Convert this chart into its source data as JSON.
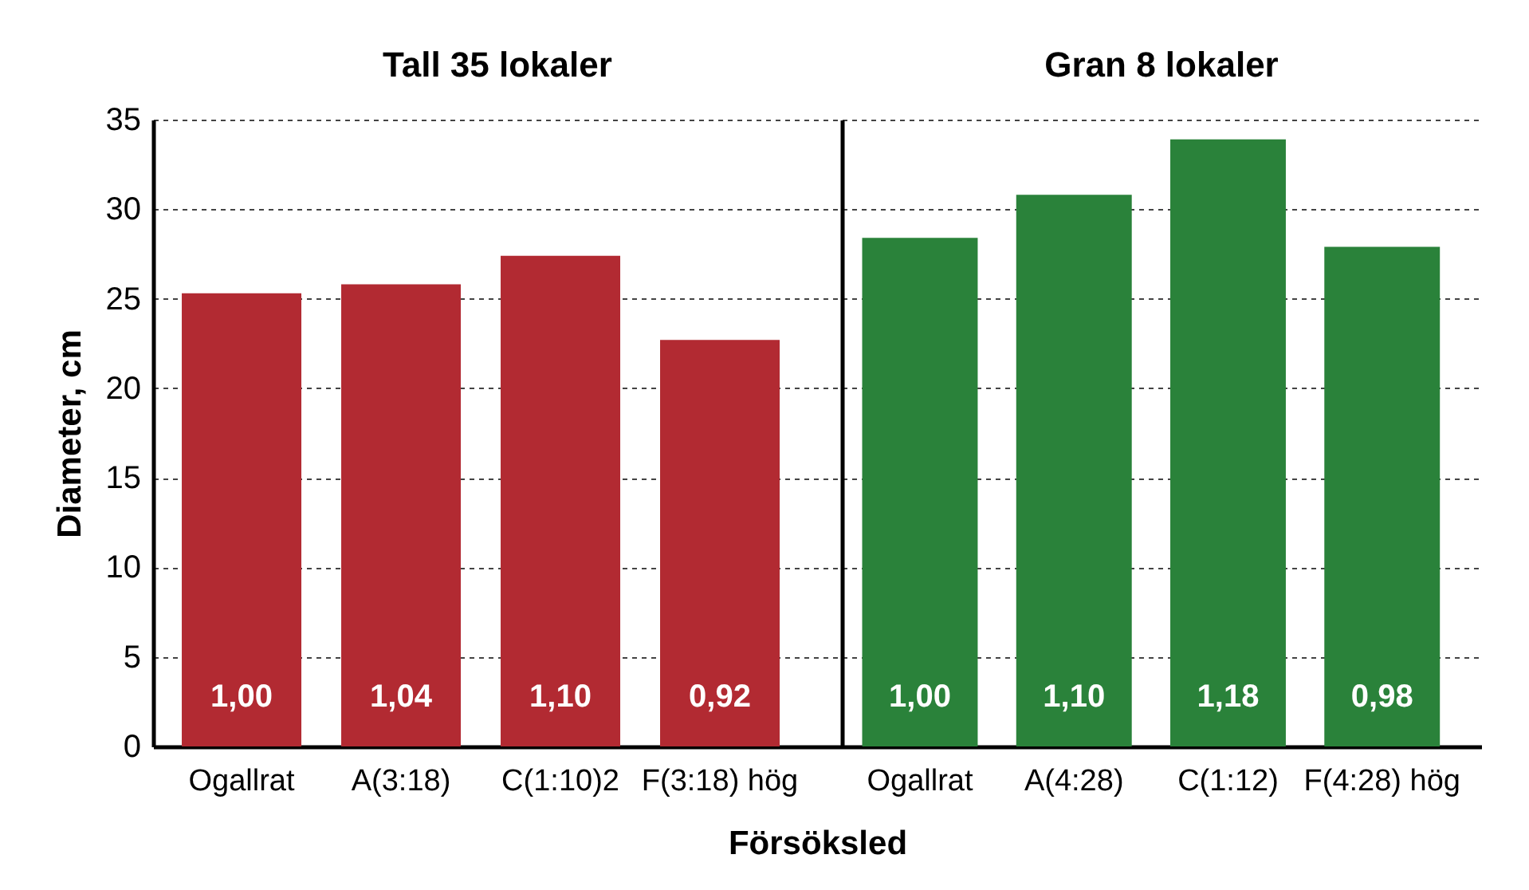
{
  "chart_data": [
    {
      "type": "bar",
      "title": "Tall 35 lokaler",
      "xlabel": "Försöksled",
      "ylabel": "Diameter, cm",
      "categories": [
        "Ogallrat",
        "A(3:18)",
        "C(1:10)2",
        "F(3:18) hög"
      ],
      "values": [
        25.3,
        25.8,
        27.4,
        22.7
      ],
      "color": "#b22a32",
      "annotations": [
        "1,00",
        "1,04",
        "1,10",
        "0,92"
      ],
      "ylim": [
        0,
        35
      ],
      "yticks": [
        0,
        5,
        10,
        15,
        20,
        25,
        30,
        35
      ],
      "grid": "y"
    },
    {
      "type": "bar",
      "title": "Gran 8 lokaler",
      "categories": [
        "Ogallrat",
        "A(4:28)",
        "C(1:12)",
        "F(4:28) hög"
      ],
      "values": [
        28.4,
        30.8,
        33.9,
        27.9
      ],
      "color": "#2a823a",
      "annotations": [
        "1,00",
        "1,10",
        "1,18",
        "0,98"
      ],
      "ylim": [
        0,
        35
      ],
      "yticks": [
        0,
        5,
        10,
        15,
        20,
        25,
        30,
        35
      ],
      "grid": "y",
      "tick_labels": "x"
    }
  ]
}
